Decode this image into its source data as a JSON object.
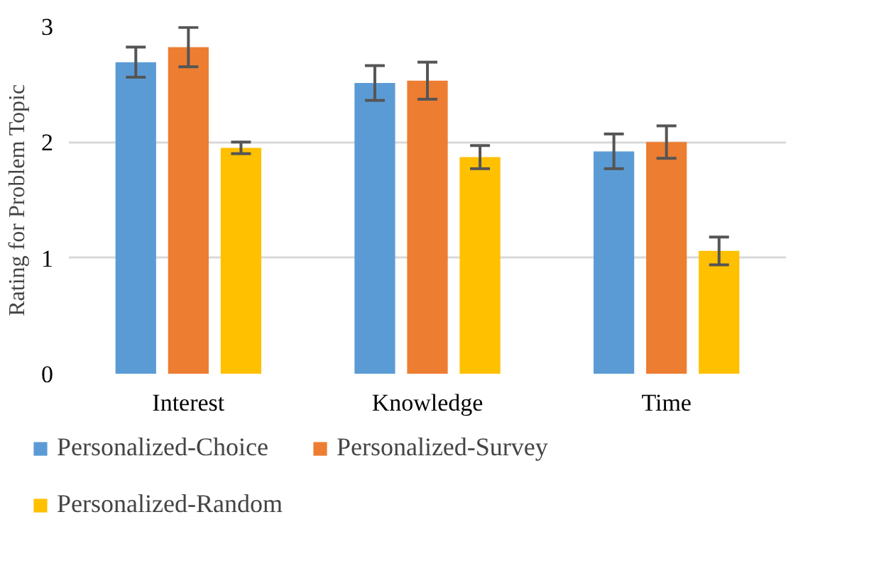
{
  "chart_data": {
    "type": "bar",
    "ylabel": "Rating for Problem Topic",
    "categories": [
      "Interest",
      "Knowledge",
      "Time"
    ],
    "series": [
      {
        "name": "Personalized-Choice",
        "color": "#5b9bd5",
        "values": [
          2.69,
          2.51,
          1.92
        ],
        "errors": [
          0.13,
          0.15,
          0.15
        ]
      },
      {
        "name": "Personalized-Survey",
        "color": "#ed7d31",
        "values": [
          2.82,
          2.53,
          2.0
        ],
        "errors": [
          0.17,
          0.16,
          0.14
        ]
      },
      {
        "name": "Personalized-Random",
        "color": "#ffc000",
        "values": [
          1.95,
          1.87,
          1.06
        ],
        "errors": [
          0.05,
          0.1,
          0.12
        ]
      }
    ],
    "ylim": [
      0,
      3
    ],
    "yticks": [
      0,
      1,
      2,
      3
    ],
    "grid": "y",
    "legend": "bottom"
  }
}
